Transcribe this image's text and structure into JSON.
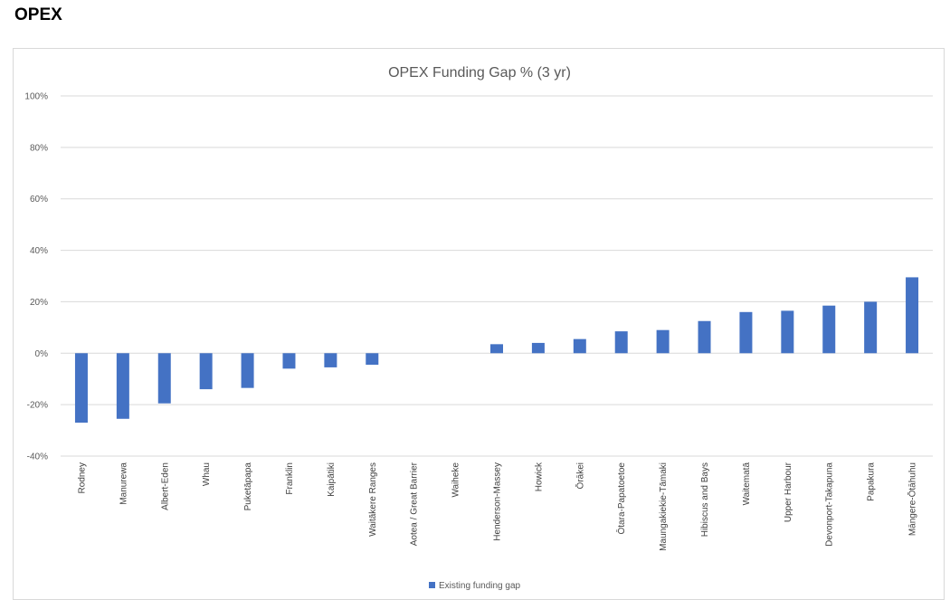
{
  "page": {
    "heading": "OPEX"
  },
  "colors": {
    "bar": "#4472c4",
    "grid": "#d9d9d9",
    "text": "#595959"
  },
  "chart_data": {
    "type": "bar",
    "title": "OPEX Funding Gap % (3 yr)",
    "xlabel": "",
    "ylabel": "",
    "ylim": [
      -40,
      100
    ],
    "yticks": [
      100,
      80,
      60,
      40,
      20,
      0,
      -20,
      -40
    ],
    "ytick_labels": [
      "100%",
      "80%",
      "60%",
      "40%",
      "20%",
      "0%",
      "-20%",
      "-40%"
    ],
    "grid": true,
    "legend_position": "bottom",
    "categories": [
      "Rodney",
      "Manurewa",
      "Albert-Eden",
      "Whau",
      "Puketāpapa",
      "Franklin",
      "Kaipātiki",
      "Waitākere Ranges",
      "Aotea / Great Barrier",
      "Waiheke",
      "Henderson-Massey",
      "Howick",
      "Ōrākei",
      "Ōtara-Papatoetoe",
      "Maungakiekie-Tāmaki",
      "Hibiscus and Bays",
      "Waitematā",
      "Upper Harbour",
      "Devonport-Takapuna",
      "Papakura",
      "Māngere-Ōtāhuhu"
    ],
    "series": [
      {
        "name": "Existing funding gap",
        "values": [
          -27,
          -25.5,
          -19.5,
          -14,
          -13.5,
          -6,
          -5.5,
          -4.5,
          0,
          0,
          3.5,
          4,
          5.5,
          8.5,
          9,
          12.5,
          16,
          16.5,
          18.5,
          20,
          29.5
        ]
      }
    ]
  }
}
